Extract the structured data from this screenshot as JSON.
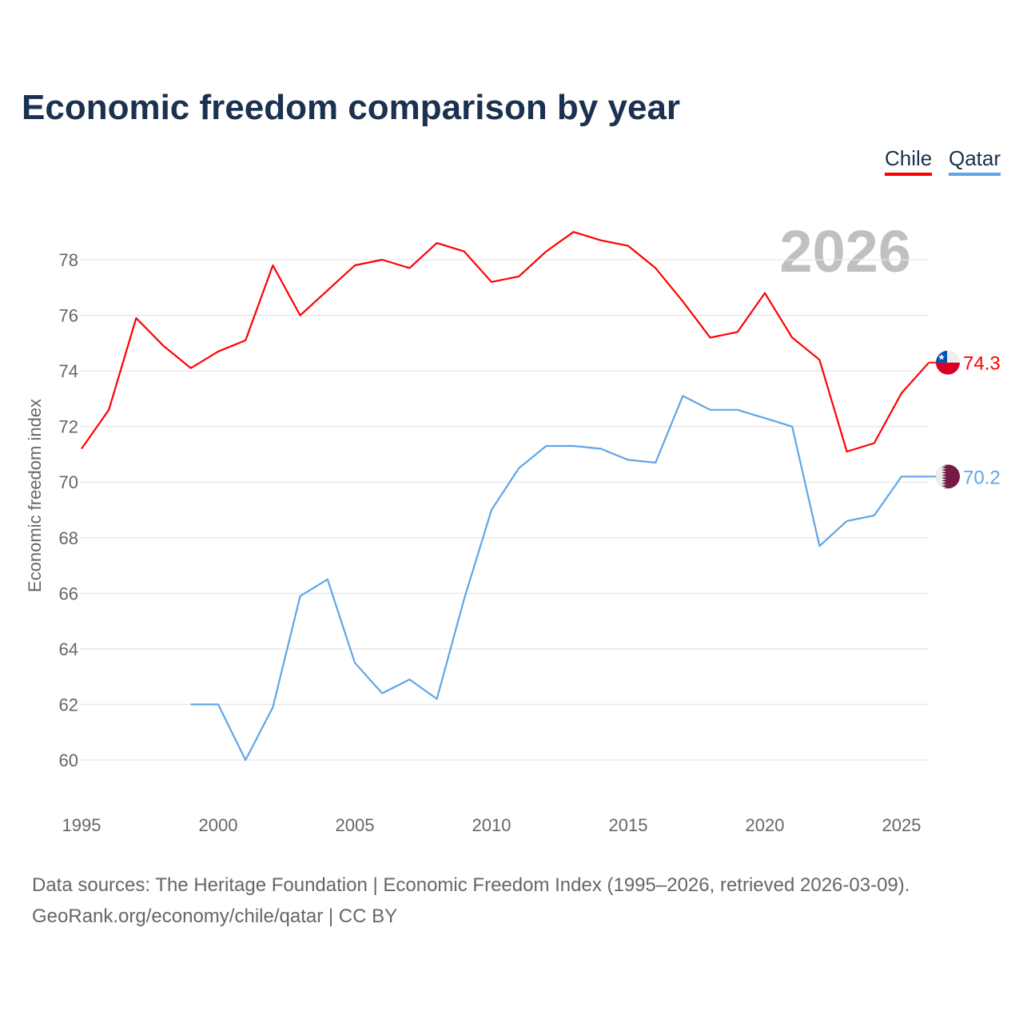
{
  "source_lines": [
    "Data sources: The Heritage Foundation | Economic Freedom Index (1995–2026, retrieved 2026-03-09).",
    "GeoRank.org/economy/chile/qatar | CC BY"
  ],
  "chart_data": {
    "type": "line",
    "title": "Economic freedom comparison by year",
    "watermark_year": "2026",
    "xlabel": "",
    "ylabel": "Economic freedom index",
    "xlim": [
      1995,
      2026
    ],
    "ylim": [
      58.5,
      80
    ],
    "xticks": [
      1995,
      2000,
      2005,
      2010,
      2015,
      2020,
      2025
    ],
    "yticks": [
      60,
      62,
      64,
      66,
      68,
      70,
      72,
      74,
      76,
      78
    ],
    "grid": true,
    "legend_position": "top-right",
    "series": [
      {
        "name": "Chile",
        "color": "#ff0000",
        "flag": "chile-flag",
        "end_label": "74.3",
        "x": [
          1995,
          1996,
          1997,
          1998,
          1999,
          2000,
          2001,
          2002,
          2003,
          2004,
          2005,
          2006,
          2007,
          2008,
          2009,
          2010,
          2011,
          2012,
          2013,
          2014,
          2015,
          2016,
          2017,
          2018,
          2019,
          2020,
          2021,
          2022,
          2023,
          2024,
          2025,
          2026
        ],
        "values": [
          71.2,
          72.6,
          75.9,
          74.9,
          74.1,
          74.7,
          75.1,
          77.8,
          76.0,
          76.9,
          77.8,
          78.0,
          77.7,
          78.6,
          78.3,
          77.2,
          77.4,
          78.3,
          79.0,
          78.7,
          78.5,
          77.7,
          76.5,
          75.2,
          75.4,
          76.8,
          75.2,
          74.4,
          71.1,
          71.4,
          73.2,
          74.3
        ]
      },
      {
        "name": "Qatar",
        "color": "#60a5e8",
        "flag": "qatar-flag",
        "end_label": "70.2",
        "x": [
          1999,
          2000,
          2001,
          2002,
          2003,
          2004,
          2005,
          2006,
          2007,
          2008,
          2009,
          2010,
          2011,
          2012,
          2013,
          2014,
          2015,
          2016,
          2017,
          2018,
          2019,
          2020,
          2021,
          2022,
          2023,
          2024,
          2025,
          2026
        ],
        "values": [
          62.0,
          62.0,
          60.0,
          61.9,
          65.9,
          66.5,
          63.5,
          62.4,
          62.9,
          62.2,
          65.8,
          69.0,
          70.5,
          71.3,
          71.3,
          71.2,
          70.8,
          70.7,
          73.1,
          72.6,
          72.6,
          72.3,
          72.0,
          67.7,
          68.6,
          68.8,
          70.2,
          70.2
        ]
      }
    ]
  }
}
